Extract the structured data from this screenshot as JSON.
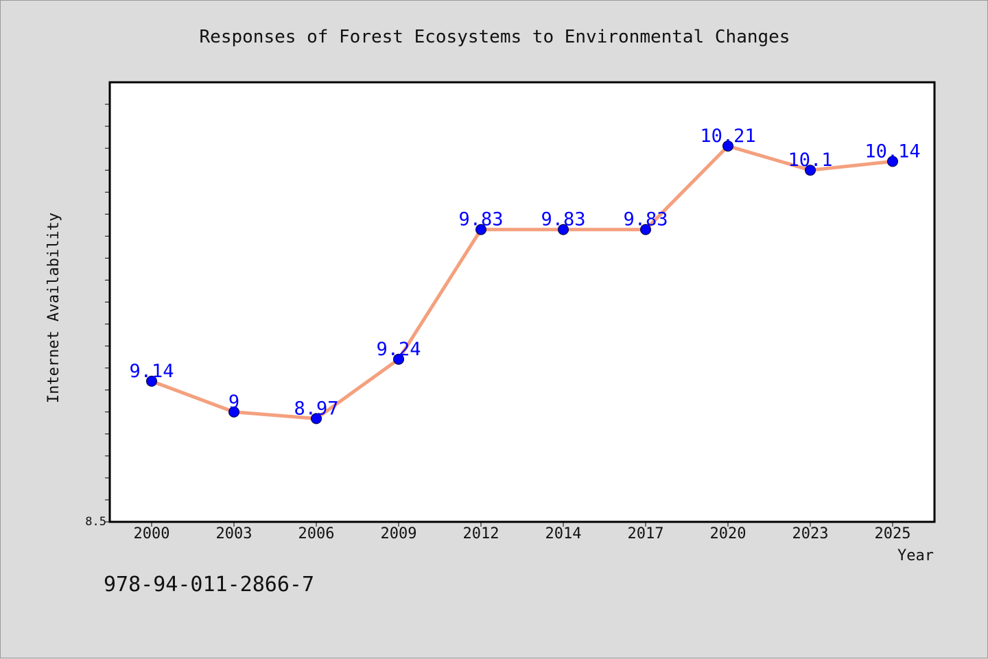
{
  "colors": {
    "background": "#dcdcdc",
    "plot_background": "#ffffff",
    "line": "#f4a07e",
    "marker": "#0000ff",
    "data_label": "#0000ff"
  },
  "isbn": "978-94-011-2866-7",
  "chart_data": {
    "type": "line",
    "title": "Responses of Forest Ecosystems to Environmental Changes",
    "xlabel": "Year",
    "ylabel": "Internet Availability",
    "categories": [
      "2000",
      "2003",
      "2006",
      "2009",
      "2012",
      "2014",
      "2017",
      "2020",
      "2023",
      "2025"
    ],
    "series": [
      {
        "values": [
          9.14,
          9,
          8.97,
          9.24,
          9.83,
          9.83,
          9.83,
          10.21,
          10.1,
          10.14
        ]
      }
    ],
    "data_labels": [
      "9.14",
      "9",
      "8.97",
      "9.24",
      "9.83",
      "9.83",
      "9.83",
      "10.21",
      "10.1",
      "10.14"
    ],
    "ylim": [
      8.5,
      10.5
    ],
    "ytick_labels": [
      {
        "value": 8.5,
        "label": "8.5"
      }
    ],
    "minor_tick_step": 0.1,
    "grid": false,
    "legend": "none"
  }
}
